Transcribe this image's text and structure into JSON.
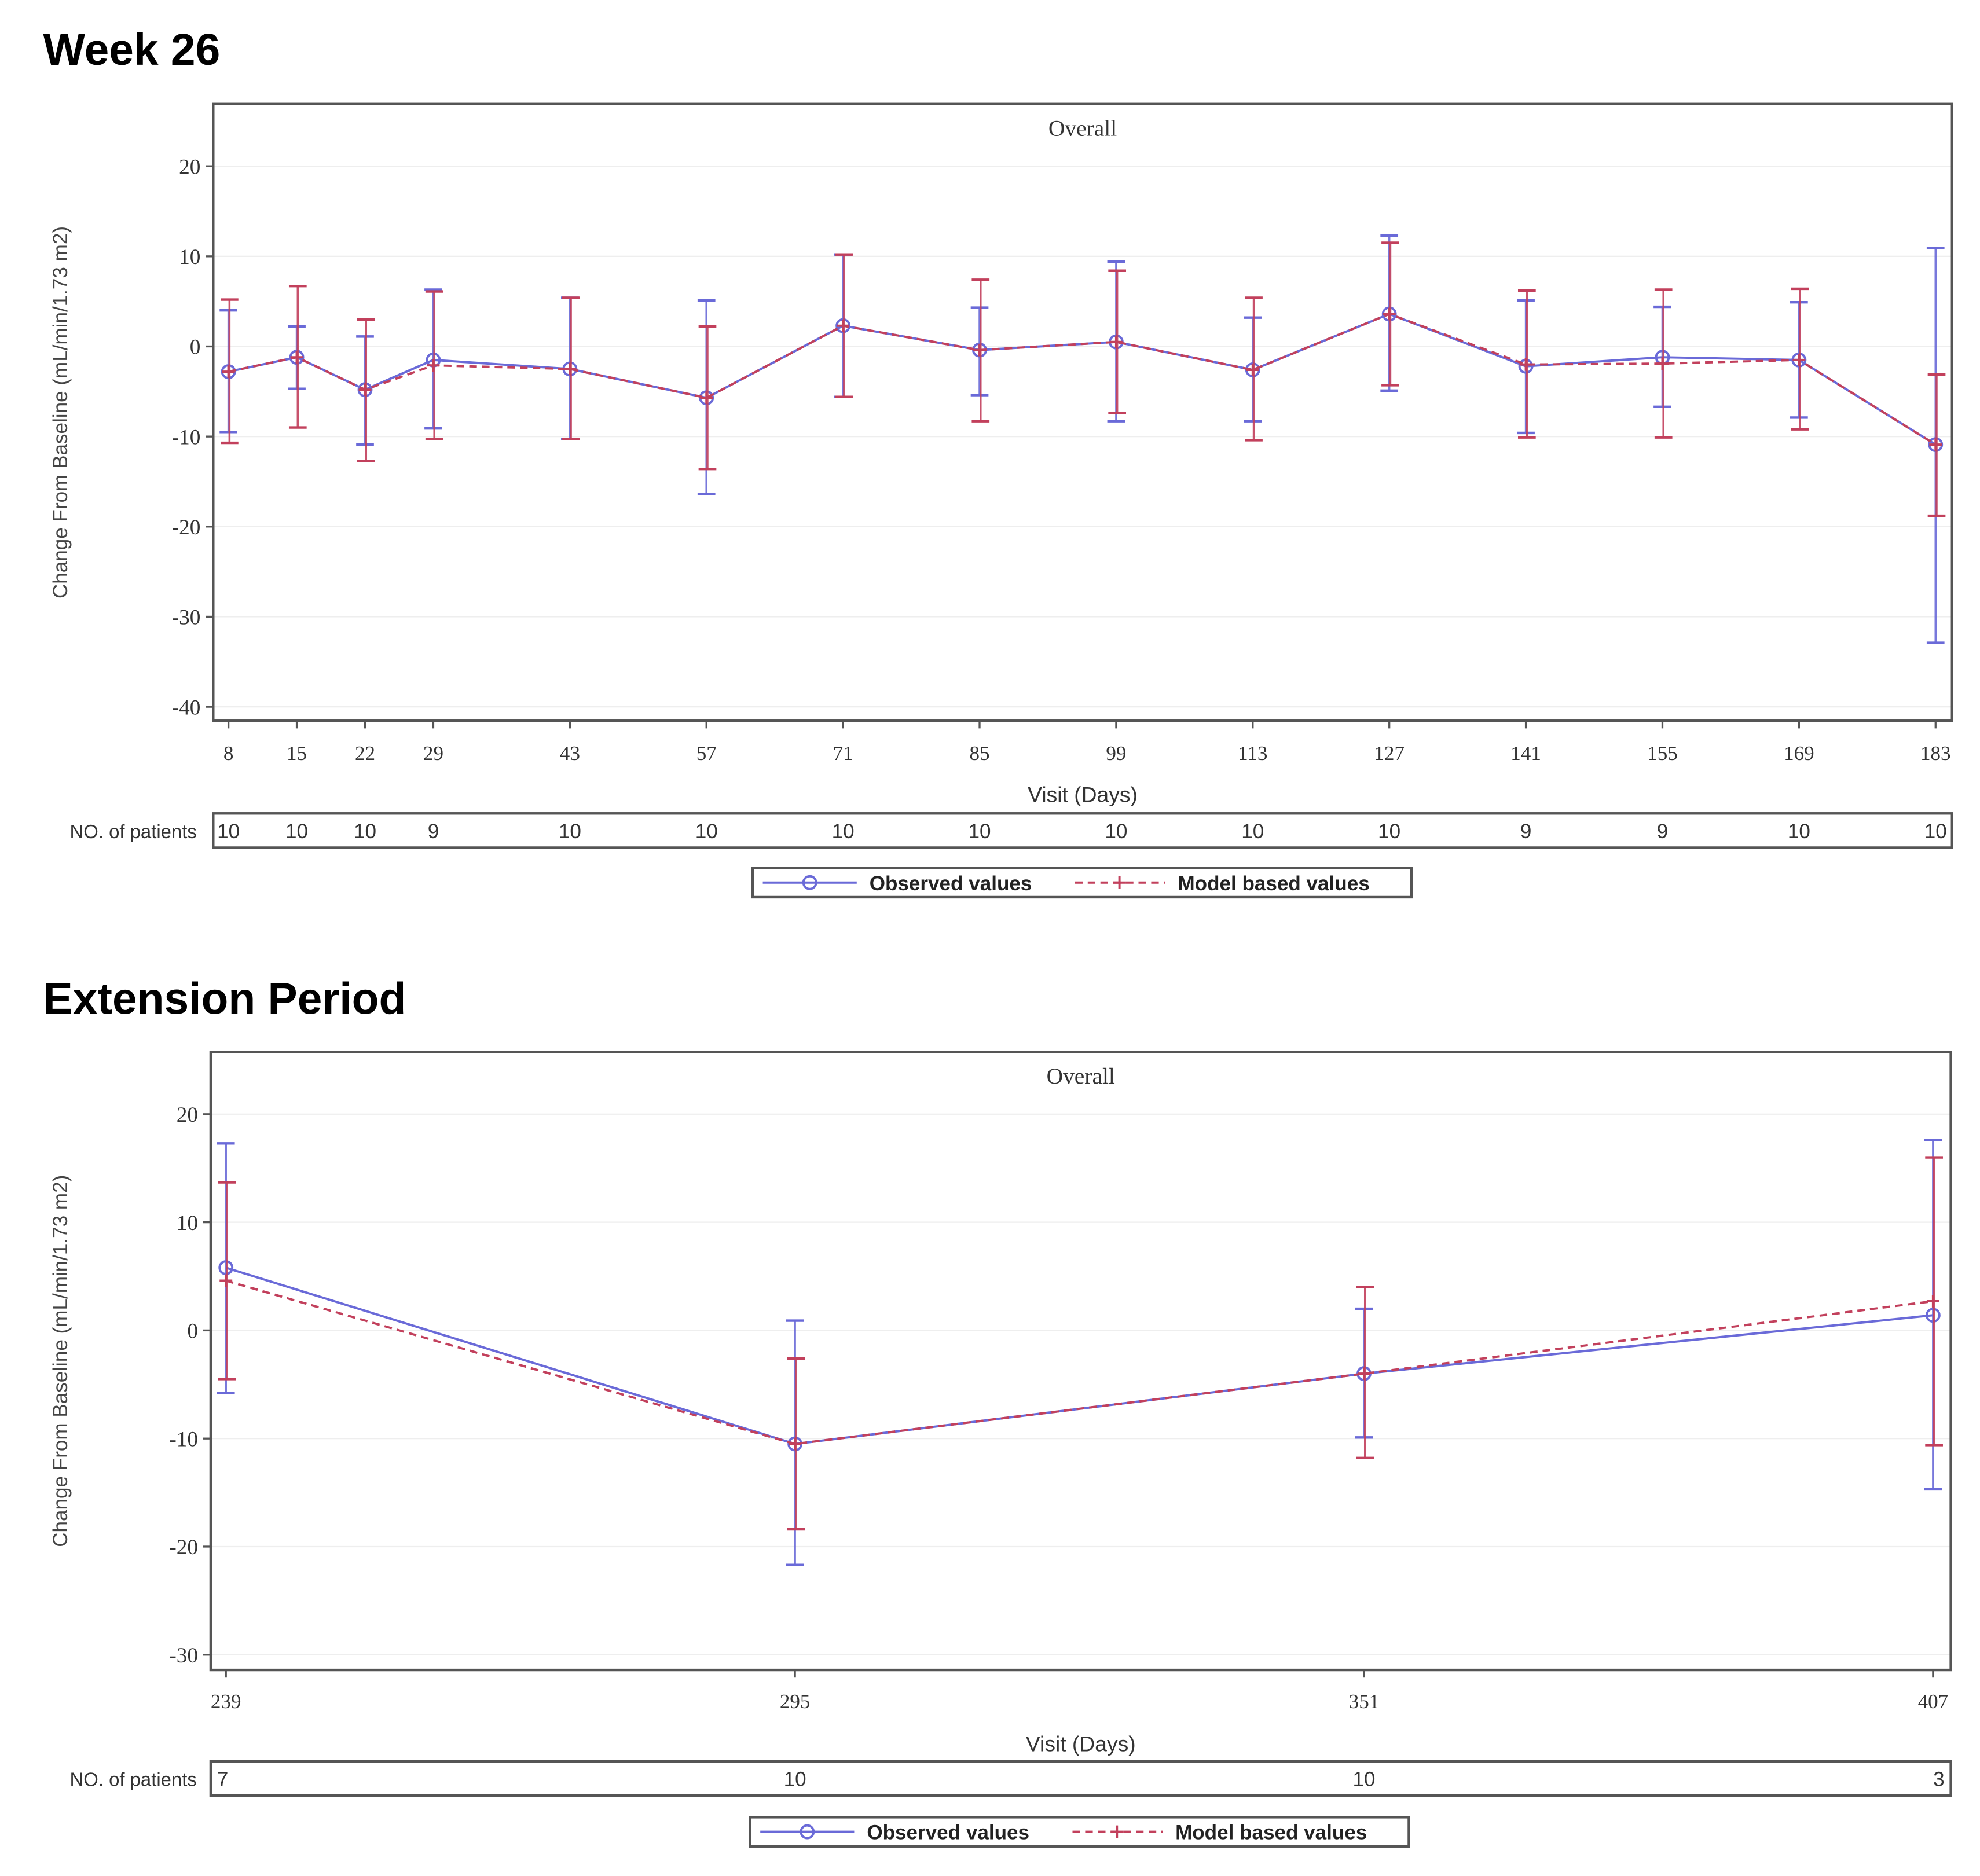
{
  "colors": {
    "observed": "#6a6ad8",
    "model": "#c2405c",
    "frame": "#555555",
    "grid": "#eeeeee"
  },
  "chart_data": [
    {
      "type": "line",
      "heading": "Week 26",
      "title": "Overall",
      "xlabel": "Visit (Days)",
      "ylabel": "Change From Baseline (mL/min/1.73 m2)",
      "ylim": [
        -40,
        20
      ],
      "yticks": [
        20,
        10,
        0,
        -10,
        -20,
        -30,
        -40
      ],
      "x": [
        8,
        15,
        22,
        29,
        43,
        57,
        71,
        85,
        99,
        113,
        127,
        141,
        155,
        169,
        183
      ],
      "patients_label": "NO. of patients",
      "patients": [
        10,
        10,
        10,
        9,
        10,
        10,
        10,
        10,
        10,
        10,
        10,
        9,
        9,
        10,
        10
      ],
      "legend": {
        "placement": "bottom-center",
        "observed": "Observed values",
        "model": "Model based values"
      },
      "series": [
        {
          "name": "Observed values",
          "style": "solid-circle",
          "values": [
            -2.8,
            -1.2,
            -4.8,
            -1.5,
            -2.5,
            -5.7,
            2.3,
            -0.4,
            0.5,
            -2.6,
            3.6,
            -2.2,
            -1.2,
            -1.5,
            -10.9
          ],
          "lower": [
            -9.5,
            -4.7,
            -10.9,
            -9.1,
            -10.3,
            -16.4,
            -5.6,
            -5.4,
            -8.3,
            -8.3,
            -4.9,
            -9.6,
            -6.7,
            -7.9,
            -32.9
          ],
          "upper": [
            4.0,
            2.2,
            1.1,
            6.3,
            5.4,
            5.1,
            10.2,
            4.3,
            9.4,
            3.2,
            12.3,
            5.1,
            4.4,
            4.9,
            10.9
          ]
        },
        {
          "name": "Model based values",
          "style": "dashed-plus",
          "values": [
            -2.8,
            -1.2,
            -4.8,
            -2.1,
            -2.5,
            -5.7,
            2.3,
            -0.4,
            0.5,
            -2.6,
            3.6,
            -2.0,
            -1.9,
            -1.5,
            -10.9
          ],
          "lower": [
            -10.7,
            -9.0,
            -12.7,
            -10.3,
            -10.3,
            -13.6,
            -5.6,
            -8.3,
            -7.4,
            -10.4,
            -4.3,
            -10.1,
            -10.1,
            -9.2,
            -18.8
          ],
          "upper": [
            5.2,
            6.7,
            3.0,
            6.1,
            5.4,
            2.2,
            10.2,
            7.4,
            8.4,
            5.4,
            11.5,
            6.2,
            6.3,
            6.4,
            -3.1
          ]
        }
      ]
    },
    {
      "type": "line",
      "heading": "Extension Period",
      "title": "Overall",
      "xlabel": "Visit (Days)",
      "ylabel": "Change From Baseline (mL/min/1.73 m2)",
      "ylim": [
        -30,
        20
      ],
      "yticks": [
        20,
        10,
        0,
        -10,
        -20,
        -30
      ],
      "x": [
        239,
        295,
        351,
        407
      ],
      "patients_label": "NO. of patients",
      "patients": [
        7,
        10,
        10,
        3
      ],
      "legend": {
        "placement": "bottom-center",
        "observed": "Observed values",
        "model": "Model based values"
      },
      "series": [
        {
          "name": "Observed values",
          "style": "solid-circle",
          "values": [
            5.8,
            -10.5,
            -4.0,
            1.4
          ],
          "lower": [
            -5.8,
            -21.7,
            -9.9,
            -14.7
          ],
          "upper": [
            17.3,
            0.9,
            2.0,
            17.6
          ]
        },
        {
          "name": "Model based values",
          "style": "dashed-plus",
          "values": [
            4.6,
            -10.5,
            -4.0,
            2.7
          ],
          "lower": [
            -4.5,
            -18.4,
            -11.8,
            -10.6
          ],
          "upper": [
            13.7,
            -2.6,
            4.0,
            16.0
          ]
        }
      ]
    }
  ]
}
